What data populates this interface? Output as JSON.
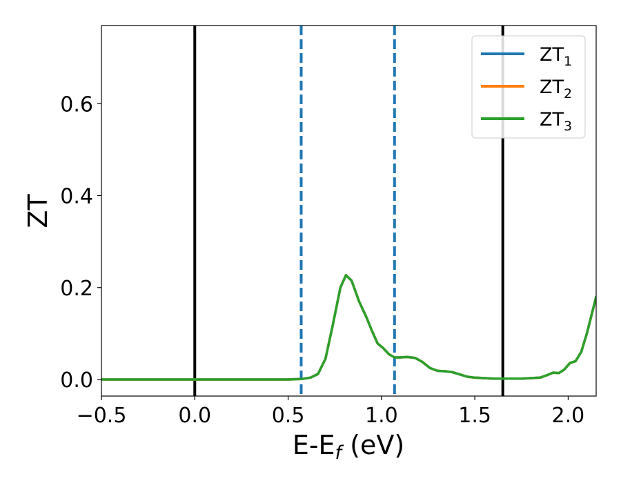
{
  "chart_data": {
    "type": "line",
    "xlabel_main": "E-E",
    "xlabel_sub": "f",
    "xlabel_unit": " (eV)",
    "ylabel": "ZT",
    "xlim": [
      -0.5,
      2.15
    ],
    "ylim": [
      -0.036,
      0.77
    ],
    "x_ticks": [
      {
        "value": -0.5,
        "label": "−0.5"
      },
      {
        "value": 0.0,
        "label": "0.0"
      },
      {
        "value": 0.5,
        "label": "0.5"
      },
      {
        "value": 1.0,
        "label": "1.0"
      },
      {
        "value": 1.5,
        "label": "1.5"
      },
      {
        "value": 2.0,
        "label": "2.0"
      }
    ],
    "y_ticks": [
      {
        "value": 0.0,
        "label": "0.0"
      },
      {
        "value": 0.2,
        "label": "0.2"
      },
      {
        "value": 0.4,
        "label": "0.4"
      },
      {
        "value": 0.6,
        "label": "0.6"
      }
    ],
    "grid": false,
    "legend_position": "top-right",
    "vlines": [
      {
        "x": 0.0,
        "color": "#000000",
        "style": "solid"
      },
      {
        "x": 1.65,
        "color": "#000000",
        "style": "solid"
      },
      {
        "x": 0.57,
        "color": "#1f77b4",
        "style": "dashed"
      },
      {
        "x": 1.07,
        "color": "#1f77b4",
        "style": "dashed"
      }
    ],
    "series": [
      {
        "name_main": "ZT",
        "name_sub": "1",
        "color": "#1f77b4",
        "x": [
          -0.5,
          0.0,
          0.5,
          0.57,
          0.62,
          0.66,
          0.7,
          0.74,
          0.78,
          0.81,
          0.84,
          0.88,
          0.92,
          0.95,
          0.98,
          1.01,
          1.04,
          1.07,
          1.1,
          1.14,
          1.18,
          1.22,
          1.26,
          1.3,
          1.34,
          1.38,
          1.42,
          1.46,
          1.5,
          1.55,
          1.6,
          1.65,
          1.7,
          1.75,
          1.8,
          1.85,
          1.89,
          1.92,
          1.95,
          1.98,
          2.01,
          2.04,
          2.07,
          2.1,
          2.15
        ],
        "y": [
          0.0,
          0.0,
          0.0,
          0.001,
          0.004,
          0.012,
          0.045,
          0.12,
          0.2,
          0.227,
          0.215,
          0.17,
          0.135,
          0.105,
          0.078,
          0.068,
          0.055,
          0.048,
          0.048,
          0.049,
          0.047,
          0.038,
          0.025,
          0.019,
          0.018,
          0.016,
          0.011,
          0.006,
          0.004,
          0.003,
          0.002,
          0.002,
          0.002,
          0.002,
          0.003,
          0.004,
          0.01,
          0.015,
          0.014,
          0.022,
          0.036,
          0.04,
          0.06,
          0.1,
          0.18
        ]
      },
      {
        "name_main": "ZT",
        "name_sub": "2",
        "color": "#ff7f0e",
        "x": [
          -0.5,
          0.0,
          0.5,
          0.57,
          0.62,
          0.66,
          0.7,
          0.74,
          0.78,
          0.81,
          0.84,
          0.88,
          0.92,
          0.95,
          0.98,
          1.01,
          1.04,
          1.07,
          1.1,
          1.14,
          1.18,
          1.22,
          1.26,
          1.3,
          1.34,
          1.38,
          1.42,
          1.46,
          1.5,
          1.55,
          1.6,
          1.65,
          1.7,
          1.75,
          1.8,
          1.85,
          1.89,
          1.92,
          1.95,
          1.98,
          2.01,
          2.04,
          2.07,
          2.1,
          2.15
        ],
        "y": [
          0.0,
          0.0,
          0.0,
          0.001,
          0.004,
          0.012,
          0.045,
          0.12,
          0.2,
          0.227,
          0.215,
          0.17,
          0.135,
          0.105,
          0.078,
          0.068,
          0.055,
          0.048,
          0.048,
          0.049,
          0.047,
          0.038,
          0.025,
          0.019,
          0.018,
          0.016,
          0.011,
          0.006,
          0.004,
          0.003,
          0.002,
          0.002,
          0.002,
          0.002,
          0.003,
          0.004,
          0.01,
          0.015,
          0.014,
          0.022,
          0.036,
          0.04,
          0.06,
          0.1,
          0.18
        ]
      },
      {
        "name_main": "ZT",
        "name_sub": "3",
        "color": "#2ca02c",
        "x": [
          -0.5,
          0.0,
          0.5,
          0.57,
          0.62,
          0.66,
          0.7,
          0.74,
          0.78,
          0.81,
          0.84,
          0.88,
          0.92,
          0.95,
          0.98,
          1.01,
          1.04,
          1.07,
          1.1,
          1.14,
          1.18,
          1.22,
          1.26,
          1.3,
          1.34,
          1.38,
          1.42,
          1.46,
          1.5,
          1.55,
          1.6,
          1.65,
          1.7,
          1.75,
          1.8,
          1.85,
          1.89,
          1.92,
          1.95,
          1.98,
          2.01,
          2.04,
          2.07,
          2.1,
          2.15
        ],
        "y": [
          0.0,
          0.0,
          0.0,
          0.001,
          0.004,
          0.012,
          0.045,
          0.12,
          0.2,
          0.227,
          0.215,
          0.17,
          0.135,
          0.105,
          0.078,
          0.068,
          0.055,
          0.048,
          0.048,
          0.049,
          0.047,
          0.038,
          0.025,
          0.019,
          0.018,
          0.016,
          0.011,
          0.006,
          0.004,
          0.003,
          0.002,
          0.002,
          0.002,
          0.002,
          0.003,
          0.004,
          0.01,
          0.015,
          0.014,
          0.022,
          0.036,
          0.04,
          0.06,
          0.1,
          0.18
        ]
      }
    ]
  }
}
